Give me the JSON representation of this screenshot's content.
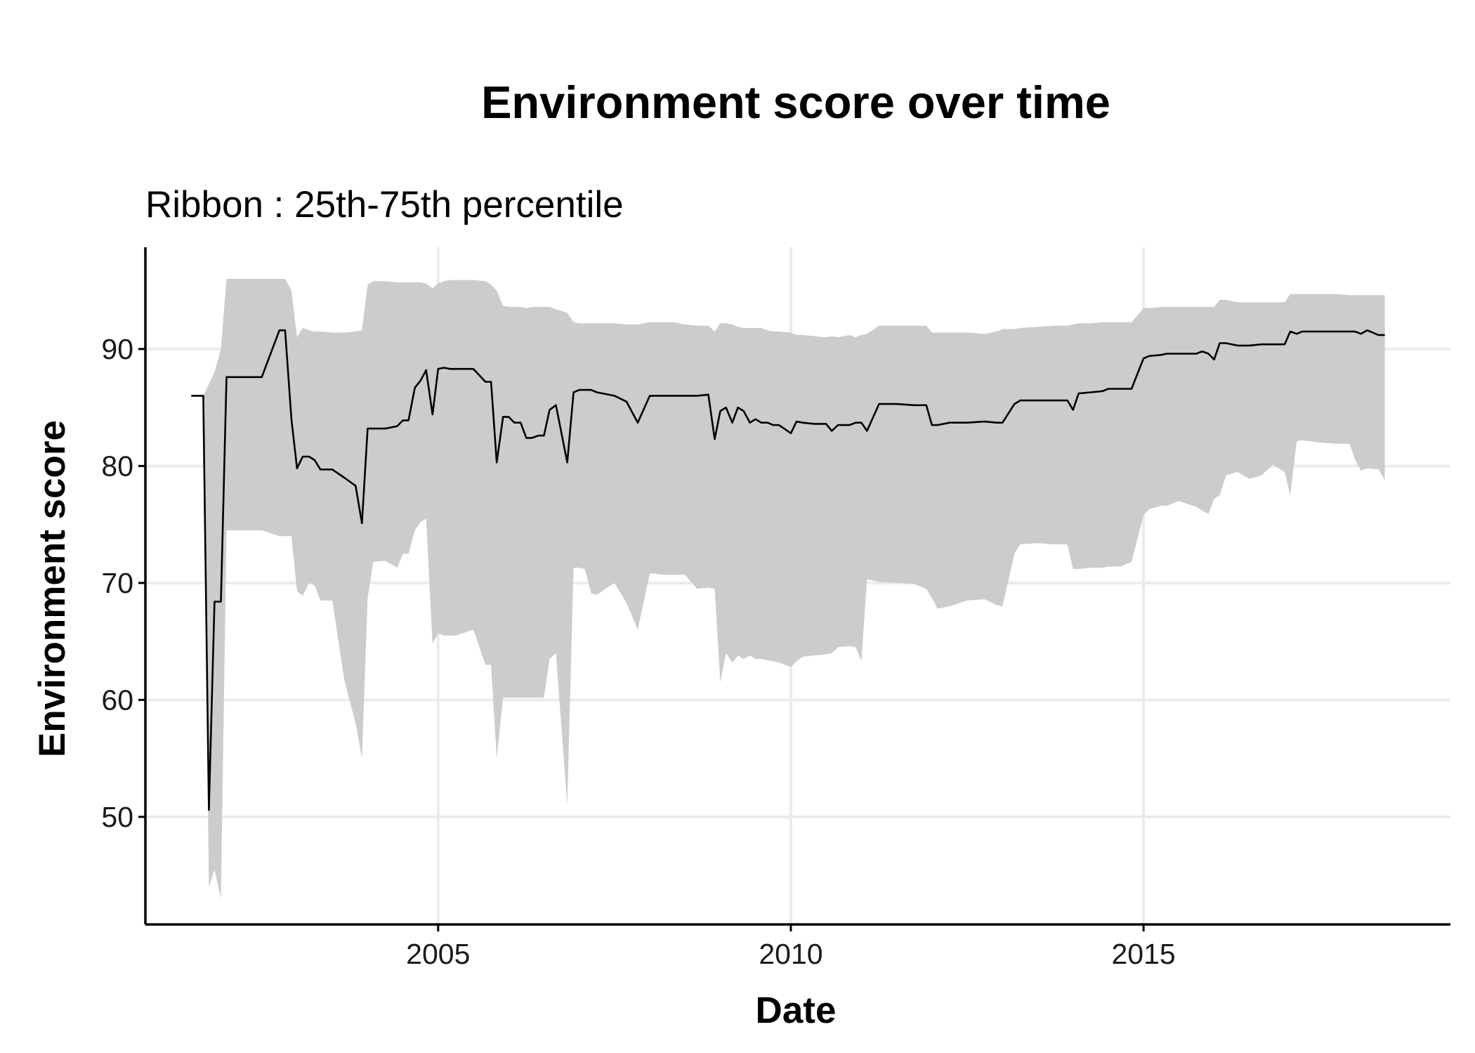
{
  "chart_data": {
    "type": "line",
    "title": "Environment score over time",
    "subtitle": "Ribbon : 25th-75th percentile",
    "xlabel": "Date",
    "ylabel": "Environment score",
    "xlim": [
      2000.85,
      2019.35
    ],
    "ylim": [
      40.8,
      98.7
    ],
    "x_ticks": [
      2005,
      2010,
      2015
    ],
    "y_ticks": [
      50,
      60,
      70,
      80,
      90
    ],
    "grid": true,
    "legend": "none",
    "colors": {
      "line": "#000000",
      "ribbon": "#cccccc",
      "grid": "#ebebeb"
    },
    "series": [
      {
        "kind": "median",
        "x": [
          2001.5,
          2001.67,
          2001.75,
          2001.83,
          2001.92,
          2002.0,
          2002.08,
          2002.17,
          2002.5,
          2002.75,
          2002.83,
          2002.92,
          2003.0,
          2003.08,
          2003.17,
          2003.25,
          2003.33,
          2003.5,
          2003.67,
          2003.83,
          2003.92,
          2004.0,
          2004.08,
          2004.25,
          2004.42,
          2004.5,
          2004.58,
          2004.67,
          2004.75,
          2004.83,
          2004.92,
          2005.0,
          2005.08,
          2005.17,
          2005.25,
          2005.5,
          2005.67,
          2005.75,
          2005.83,
          2005.92,
          2006.0,
          2006.08,
          2006.17,
          2006.25,
          2006.33,
          2006.42,
          2006.5,
          2006.58,
          2006.67,
          2006.83,
          2006.92,
          2007.0,
          2007.08,
          2007.17,
          2007.25,
          2007.5,
          2007.67,
          2007.83,
          2008.0,
          2008.08,
          2008.17,
          2008.33,
          2008.5,
          2008.67,
          2008.83,
          2008.92,
          2009.0,
          2009.08,
          2009.17,
          2009.25,
          2009.33,
          2009.42,
          2009.5,
          2009.58,
          2009.67,
          2009.75,
          2009.83,
          2010.0,
          2010.08,
          2010.17,
          2010.33,
          2010.5,
          2010.58,
          2010.67,
          2010.83,
          2010.92,
          2011.0,
          2011.08,
          2011.25,
          2011.5,
          2011.75,
          2011.92,
          2012.0,
          2012.08,
          2012.25,
          2012.5,
          2012.75,
          2012.92,
          2013.0,
          2013.17,
          2013.25,
          2013.5,
          2013.75,
          2013.92,
          2014.0,
          2014.08,
          2014.25,
          2014.42,
          2014.5,
          2014.67,
          2014.83,
          2015.0,
          2015.08,
          2015.25,
          2015.33,
          2015.5,
          2015.75,
          2015.83,
          2015.92,
          2016.0,
          2016.08,
          2016.17,
          2016.33,
          2016.5,
          2016.67,
          2016.83,
          2017.0,
          2017.08,
          2017.17,
          2017.25,
          2017.5,
          2017.75,
          2017.92,
          2018.0,
          2018.08,
          2018.17,
          2018.33,
          2018.42
        ],
        "y": [
          86.0,
          86.0,
          50.6,
          68.4,
          68.4,
          87.6,
          87.6,
          87.6,
          87.6,
          91.6,
          91.6,
          84.0,
          79.8,
          80.8,
          80.8,
          80.5,
          79.7,
          79.7,
          79.0,
          78.3,
          75.1,
          83.2,
          83.2,
          83.2,
          83.4,
          83.9,
          83.9,
          86.7,
          87.3,
          88.2,
          84.4,
          88.3,
          88.4,
          88.3,
          88.3,
          88.3,
          87.2,
          87.2,
          80.3,
          84.2,
          84.2,
          83.7,
          83.7,
          82.4,
          82.4,
          82.6,
          82.6,
          84.8,
          85.2,
          80.3,
          86.3,
          86.5,
          86.5,
          86.5,
          86.3,
          86.0,
          85.5,
          83.7,
          86.0,
          86.0,
          86.0,
          86.0,
          86.0,
          86.0,
          86.1,
          82.3,
          84.7,
          85.0,
          83.7,
          85.0,
          84.7,
          83.7,
          84.0,
          83.7,
          83.7,
          83.5,
          83.5,
          82.8,
          83.8,
          83.7,
          83.6,
          83.6,
          83.0,
          83.5,
          83.5,
          83.7,
          83.7,
          83.0,
          85.3,
          85.3,
          85.2,
          85.2,
          83.5,
          83.5,
          83.7,
          83.7,
          83.8,
          83.7,
          83.7,
          85.3,
          85.6,
          85.6,
          85.6,
          85.6,
          84.8,
          86.2,
          86.3,
          86.4,
          86.6,
          86.6,
          86.6,
          89.2,
          89.4,
          89.5,
          89.6,
          89.6,
          89.6,
          89.8,
          89.6,
          89.1,
          90.5,
          90.5,
          90.3,
          90.3,
          90.4,
          90.4,
          90.4,
          91.5,
          91.3,
          91.5,
          91.5,
          91.5,
          91.5,
          91.5,
          91.3,
          91.6,
          91.2,
          91.2
        ]
      },
      {
        "kind": "ribbon",
        "x": [
          2001.5,
          2001.67,
          2001.75,
          2001.83,
          2001.92,
          2002.0,
          2002.08,
          2002.17,
          2002.5,
          2002.75,
          2002.83,
          2002.92,
          2003.0,
          2003.08,
          2003.17,
          2003.25,
          2003.33,
          2003.5,
          2003.67,
          2003.83,
          2003.92,
          2004.0,
          2004.08,
          2004.25,
          2004.42,
          2004.5,
          2004.58,
          2004.67,
          2004.75,
          2004.83,
          2004.92,
          2005.0,
          2005.08,
          2005.17,
          2005.25,
          2005.5,
          2005.67,
          2005.75,
          2005.83,
          2005.92,
          2006.0,
          2006.08,
          2006.17,
          2006.25,
          2006.33,
          2006.42,
          2006.5,
          2006.58,
          2006.67,
          2006.83,
          2006.92,
          2007.0,
          2007.08,
          2007.17,
          2007.25,
          2007.5,
          2007.67,
          2007.83,
          2008.0,
          2008.08,
          2008.17,
          2008.33,
          2008.5,
          2008.67,
          2008.83,
          2008.92,
          2009.0,
          2009.08,
          2009.17,
          2009.25,
          2009.33,
          2009.42,
          2009.5,
          2009.58,
          2009.67,
          2009.75,
          2009.83,
          2010.0,
          2010.08,
          2010.17,
          2010.33,
          2010.5,
          2010.58,
          2010.67,
          2010.83,
          2010.92,
          2011.0,
          2011.08,
          2011.25,
          2011.5,
          2011.75,
          2011.92,
          2012.0,
          2012.08,
          2012.25,
          2012.5,
          2012.75,
          2012.92,
          2013.0,
          2013.17,
          2013.25,
          2013.5,
          2013.75,
          2013.92,
          2014.0,
          2014.08,
          2014.25,
          2014.42,
          2014.5,
          2014.67,
          2014.83,
          2015.0,
          2015.08,
          2015.25,
          2015.33,
          2015.5,
          2015.75,
          2015.83,
          2015.92,
          2016.0,
          2016.08,
          2016.17,
          2016.33,
          2016.5,
          2016.67,
          2016.83,
          2017.0,
          2017.08,
          2017.17,
          2017.25,
          2017.5,
          2017.75,
          2017.92,
          2018.0,
          2018.08,
          2018.17,
          2018.33,
          2018.42
        ],
        "upper": [
          86.0,
          86.0,
          87.0,
          88.0,
          90.0,
          96.0,
          96.0,
          96.0,
          96.0,
          96.0,
          96.0,
          95.0,
          91.0,
          91.8,
          91.6,
          91.5,
          91.5,
          91.4,
          91.4,
          91.5,
          91.6,
          95.5,
          95.8,
          95.8,
          95.7,
          95.7,
          95.7,
          95.7,
          95.7,
          95.6,
          95.2,
          95.6,
          95.8,
          95.9,
          95.9,
          95.9,
          95.8,
          95.5,
          95.0,
          93.7,
          93.6,
          93.6,
          93.6,
          93.5,
          93.6,
          93.6,
          93.6,
          93.6,
          93.4,
          93.1,
          92.3,
          92.2,
          92.2,
          92.2,
          92.2,
          92.2,
          92.1,
          92.1,
          92.3,
          92.3,
          92.3,
          92.3,
          92.1,
          92.0,
          92.0,
          91.5,
          92.2,
          92.2,
          92.1,
          91.9,
          91.8,
          91.8,
          91.8,
          91.8,
          91.6,
          91.5,
          91.5,
          91.4,
          91.2,
          91.2,
          91.1,
          91.0,
          91.1,
          91.0,
          91.2,
          91.0,
          91.2,
          91.3,
          92.0,
          92.0,
          92.0,
          92.0,
          91.4,
          91.4,
          91.4,
          91.4,
          91.3,
          91.5,
          91.7,
          91.7,
          91.8,
          91.9,
          92.0,
          92.0,
          92.1,
          92.2,
          92.2,
          92.3,
          92.3,
          92.3,
          92.3,
          93.5,
          93.5,
          93.6,
          93.6,
          93.6,
          93.6,
          93.6,
          93.6,
          93.6,
          94.2,
          94.2,
          94.0,
          94.0,
          94.0,
          94.0,
          94.0,
          94.7,
          94.7,
          94.7,
          94.7,
          94.7,
          94.6,
          94.6,
          94.6,
          94.6,
          94.6,
          94.6
        ],
        "lower": [
          86.0,
          86.0,
          44.0,
          45.5,
          43.0,
          74.5,
          74.5,
          74.5,
          74.5,
          74.0,
          74.0,
          74.0,
          69.3,
          68.9,
          70.0,
          69.8,
          68.5,
          68.5,
          61.7,
          58.0,
          55.0,
          68.7,
          71.8,
          71.9,
          71.3,
          72.5,
          72.5,
          74.5,
          75.2,
          75.5,
          64.8,
          65.7,
          65.5,
          65.5,
          65.5,
          66.0,
          63.0,
          63.0,
          55.0,
          60.2,
          60.2,
          60.2,
          60.2,
          60.2,
          60.2,
          60.2,
          60.2,
          63.5,
          64.0,
          51.0,
          71.3,
          71.3,
          71.2,
          69.1,
          69.0,
          70.0,
          68.3,
          66.0,
          70.8,
          70.8,
          70.7,
          70.7,
          70.7,
          69.5,
          69.6,
          69.5,
          61.5,
          64.0,
          63.2,
          63.8,
          63.5,
          63.8,
          63.5,
          63.5,
          63.4,
          63.3,
          63.2,
          62.8,
          63.3,
          63.7,
          63.8,
          63.9,
          64.0,
          64.5,
          64.6,
          64.5,
          63.3,
          70.3,
          70.1,
          70.0,
          69.9,
          69.5,
          68.7,
          67.8,
          68.0,
          68.5,
          68.6,
          68.1,
          68.0,
          72.5,
          73.3,
          73.4,
          73.3,
          73.3,
          71.2,
          71.2,
          71.3,
          71.3,
          71.4,
          71.4,
          71.8,
          75.8,
          76.3,
          76.6,
          76.6,
          77.0,
          76.5,
          76.2,
          75.9,
          77.2,
          77.5,
          79.2,
          79.5,
          78.9,
          79.2,
          80.1,
          79.5,
          77.5,
          82.1,
          82.2,
          82.0,
          81.9,
          81.9,
          80.5,
          79.6,
          79.8,
          79.7,
          78.8
        ]
      }
    ]
  }
}
